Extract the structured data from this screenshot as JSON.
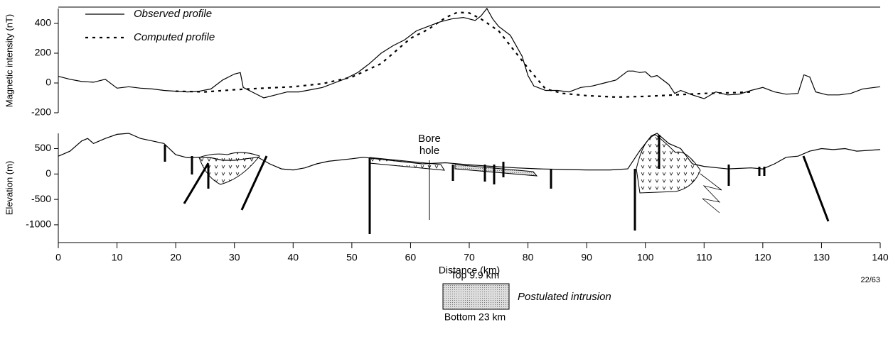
{
  "chart_data": [
    {
      "type": "line",
      "ylabel": "Magnetic intensity (nT)",
      "xlim": [
        0,
        140
      ],
      "ylim": [
        -200,
        500
      ],
      "yticks": [
        -200,
        0,
        200,
        400
      ],
      "legend": "upper left",
      "series": [
        {
          "name": "Observed profile",
          "color": "#000000",
          "dashed": false,
          "x": [
            0,
            2,
            4,
            6,
            8,
            10,
            12,
            14,
            16,
            18,
            20,
            22,
            24,
            26,
            28,
            30,
            31,
            31.5,
            33,
            35,
            37,
            39,
            41,
            43,
            45,
            47,
            49,
            51,
            53,
            55,
            57,
            59,
            61,
            63,
            65,
            67,
            69,
            71,
            72,
            73,
            74,
            75,
            77,
            79,
            80,
            81,
            83,
            85,
            87,
            89,
            91,
            93,
            95,
            97,
            98,
            99,
            100,
            101,
            102,
            104,
            105,
            106,
            108,
            110,
            112,
            114,
            116,
            118,
            120,
            122,
            124,
            126,
            127,
            128,
            129,
            131,
            133,
            135,
            137,
            139,
            140
          ],
          "values": [
            45,
            25,
            10,
            5,
            25,
            -35,
            -25,
            -35,
            -40,
            -50,
            -55,
            -60,
            -55,
            -40,
            20,
            60,
            70,
            -30,
            -60,
            -100,
            -80,
            -60,
            -60,
            -45,
            -30,
            0,
            30,
            70,
            130,
            200,
            250,
            290,
            350,
            380,
            410,
            430,
            440,
            420,
            450,
            500,
            430,
            380,
            320,
            180,
            50,
            -20,
            -50,
            -50,
            -60,
            -30,
            -20,
            0,
            20,
            80,
            80,
            70,
            75,
            40,
            50,
            -10,
            -70,
            -50,
            -80,
            -105,
            -60,
            -80,
            -75,
            -50,
            -30,
            -60,
            -75,
            -70,
            55,
            40,
            -60,
            -80,
            -80,
            -70,
            -40,
            -30,
            -25
          ]
        },
        {
          "name": "Computed profile",
          "color": "#000000",
          "dashed": true,
          "x": [
            20,
            25,
            30,
            35,
            40,
            45,
            50,
            55,
            60,
            63,
            66,
            68,
            70,
            72,
            75,
            78,
            80,
            83,
            86,
            90,
            95,
            100,
            105,
            110,
            115,
            118
          ],
          "values": [
            -55,
            -60,
            -45,
            -35,
            -25,
            -5,
            40,
            130,
            300,
            360,
            440,
            475,
            470,
            430,
            350,
            200,
            100,
            -40,
            -70,
            -85,
            -95,
            -90,
            -80,
            -70,
            -65,
            -60
          ]
        }
      ]
    },
    {
      "type": "line",
      "ylabel": "Elevation (m)",
      "xlabel": "Distance (km)",
      "xlim": [
        0,
        140
      ],
      "ylim": [
        -1350,
        800
      ],
      "xticks": [
        0,
        10,
        20,
        30,
        40,
        50,
        60,
        70,
        80,
        90,
        100,
        110,
        120,
        130,
        140
      ],
      "yticks": [
        -1000,
        -500,
        0,
        500
      ],
      "annotation": "Bore hole",
      "series": [
        {
          "color": "#000000",
          "dashed": false,
          "x": [
            0,
            1,
            2,
            4,
            5,
            6,
            8,
            10,
            12,
            14,
            16,
            18,
            20,
            22,
            24,
            26,
            28,
            30,
            32,
            34,
            36,
            38,
            40,
            42,
            44,
            46,
            50,
            52,
            54,
            58,
            62,
            66,
            70,
            74,
            78,
            82,
            86,
            90,
            94,
            97,
            99,
            101,
            102,
            104,
            106,
            108,
            110,
            114,
            118,
            120,
            122,
            124,
            126,
            128,
            130,
            132,
            134,
            136,
            140
          ],
          "values": [
            350,
            400,
            450,
            650,
            700,
            600,
            700,
            780,
            800,
            700,
            650,
            600,
            380,
            320,
            330,
            320,
            270,
            270,
            300,
            330,
            200,
            100,
            80,
            120,
            200,
            250,
            300,
            330,
            300,
            250,
            200,
            220,
            180,
            150,
            120,
            100,
            90,
            80,
            80,
            100,
            450,
            750,
            800,
            600,
            500,
            200,
            150,
            100,
            120,
            100,
            200,
            330,
            350,
            450,
            500,
            480,
            500,
            450,
            480
          ]
        }
      ]
    }
  ],
  "intrusion_key": {
    "top": "Top 9.9 km",
    "label": "Postulated intrusion",
    "bottom": "Bottom 23 km"
  },
  "figure_number": "22/63"
}
